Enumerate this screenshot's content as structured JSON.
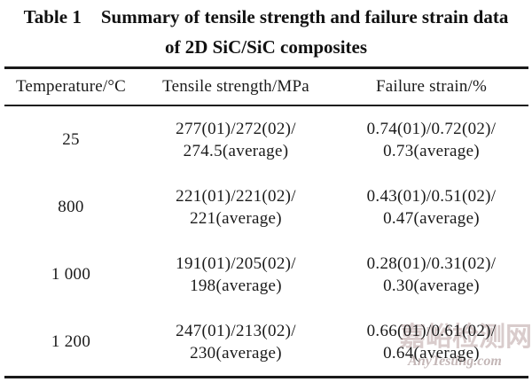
{
  "title": {
    "label": "Table 1",
    "line1": "Summary of tensile strength and failure strain data",
    "line2": "of 2D SiC/SiC composites"
  },
  "table": {
    "columns": [
      "Temperature/°C",
      "Tensile strength/MPa",
      "Failure strain/%"
    ],
    "rows": [
      {
        "temperature": "25",
        "tensile": [
          "277(01)/272(02)/",
          "274.5(average)"
        ],
        "strain": [
          "0.74(01)/0.72(02)/",
          "0.73(average)"
        ]
      },
      {
        "temperature": "800",
        "tensile": [
          "221(01)/221(02)/",
          "221(average)"
        ],
        "strain": [
          "0.43(01)/0.51(02)/",
          "0.47(average)"
        ]
      },
      {
        "temperature": "1 000",
        "tensile": [
          "191(01)/205(02)/",
          "198(average)"
        ],
        "strain": [
          "0.28(01)/0.31(02)/",
          "0.30(average)"
        ]
      },
      {
        "temperature": "1 200",
        "tensile": [
          "247(01)/213(02)/",
          "230(average)"
        ],
        "strain": [
          "0.66(01)/0.61(02)/",
          "0.64(average)"
        ]
      }
    ]
  },
  "watermark": {
    "cn": "嘉峪检测网",
    "en": "AnyTesting.com"
  },
  "colors": {
    "background": "#ffffff",
    "text": "#1a1a1a",
    "rule": "#1a1a1a",
    "watermark_cn": "#d9cccc",
    "watermark_en": "#c3b6b6"
  }
}
